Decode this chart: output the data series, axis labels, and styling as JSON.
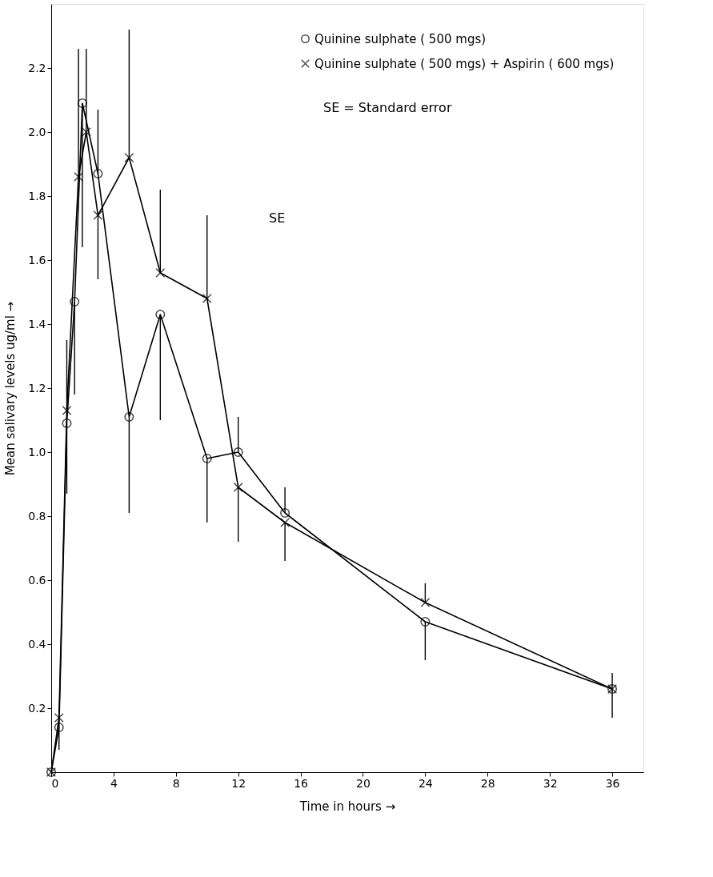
{
  "chart_data": {
    "type": "line",
    "xlabel": "Time  in  hours  →",
    "ylabel": "Mean  salivary levels  ug/ml  →",
    "xlim": [
      0,
      38
    ],
    "ylim": [
      0,
      2.4
    ],
    "xticks": [
      0,
      4,
      8,
      12,
      16,
      20,
      24,
      28,
      32,
      36
    ],
    "yticks": [
      0.2,
      0.4,
      0.6,
      0.8,
      {
        "value": 1,
        "label": "1.0"
      },
      1.2,
      1.4,
      1.6,
      1.8,
      {
        "value": 2,
        "label": "2.0"
      },
      2.2
    ],
    "grid": false,
    "legend": "top right",
    "line_style": "solid",
    "series": [
      {
        "name": "Quinine sulphate ( 500 mgs)",
        "color": "#000000",
        "marker": "circle",
        "x": [
          0,
          0.5,
          1,
          1.5,
          2,
          3,
          5,
          7,
          10,
          12,
          15,
          24,
          36
        ],
        "values": [
          0,
          0.14,
          1.09,
          1.47,
          2.09,
          1.87,
          1.11,
          1.43,
          0.98,
          1.0,
          0.81,
          0.47,
          0.26
        ],
        "errors": [
          null,
          [
            0.07,
            0.14
          ],
          [
            0.87,
            1.09
          ],
          [
            1.18,
            1.47
          ],
          [
            1.64,
            2.09
          ],
          [
            1.87,
            2.07
          ],
          [
            0.81,
            1.11
          ],
          [
            1.1,
            1.43
          ],
          [
            0.78,
            0.98
          ],
          [
            1.0,
            1.11
          ],
          [
            0.81,
            0.89
          ],
          [
            0.35,
            0.47
          ],
          [
            0.17,
            0.26
          ]
        ]
      },
      {
        "name": "Quinine sulphate ( 500 mgs) + Aspirin ( 600 mgs)",
        "color": "#000000",
        "marker": "cross",
        "x": [
          0,
          0.5,
          1,
          1.75,
          2.25,
          3,
          5,
          7,
          10,
          12,
          15,
          24,
          36
        ],
        "values": [
          0,
          0.17,
          1.13,
          1.86,
          2.0,
          1.74,
          1.92,
          1.56,
          1.48,
          0.89,
          0.78,
          0.53,
          0.26
        ],
        "errors": [
          null,
          [
            0.17,
            0.2
          ],
          [
            1.13,
            1.35
          ],
          [
            1.86,
            2.26
          ],
          [
            2.0,
            2.26
          ],
          [
            1.54,
            1.74
          ],
          [
            1.92,
            2.32
          ],
          [
            1.56,
            1.82
          ],
          [
            1.48,
            1.74
          ],
          [
            0.72,
            0.89
          ],
          [
            0.66,
            0.78
          ],
          [
            0.53,
            0.59
          ],
          [
            0.26,
            0.31
          ]
        ]
      }
    ],
    "annotations": [
      "SE",
      "SE = Standard error"
    ]
  }
}
